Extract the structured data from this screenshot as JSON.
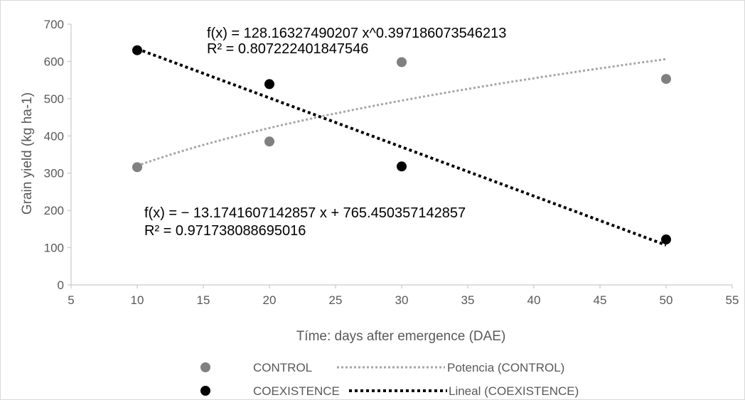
{
  "chart_data": {
    "type": "scatter",
    "xlabel": "Tíme: days after emergence (DAE)",
    "ylabel": "Grain yield (kg ha-1)",
    "xlim": [
      5,
      55
    ],
    "ylim": [
      0,
      700
    ],
    "xticks": [
      5,
      10,
      15,
      20,
      25,
      30,
      35,
      40,
      45,
      50,
      55
    ],
    "yticks": [
      0,
      100,
      200,
      300,
      400,
      500,
      600,
      700
    ],
    "grid": false,
    "legend_position": "bottom",
    "series": [
      {
        "name": "CONTROL",
        "color": "#808080",
        "x": [
          10,
          20,
          30,
          50
        ],
        "y": [
          316,
          385,
          598,
          553
        ]
      },
      {
        "name": "COEXISTENCE",
        "color": "#000000",
        "x": [
          10,
          20,
          30,
          50
        ],
        "y": [
          630,
          539,
          318,
          122
        ]
      }
    ],
    "trendlines": [
      {
        "name": "Potencia (CONTROL)",
        "kind": "power",
        "coef": 128.16327490207,
        "exponent": 0.397186073546213,
        "color": "#a6a6a6",
        "equation": "f(x) = 128.16327490207 x^0.397186073546213",
        "r2_label": "R² = 0.807222401847546"
      },
      {
        "name": "Lineal (COEXISTENCE)",
        "kind": "linear",
        "slope": -13.1741607142857,
        "intercept": 765.450357142857,
        "color": "#000000",
        "equation": "f(x) = − 13.1741607142857 x + 765.450357142857",
        "r2_label": "R² = 0.971738088695016"
      }
    ]
  }
}
